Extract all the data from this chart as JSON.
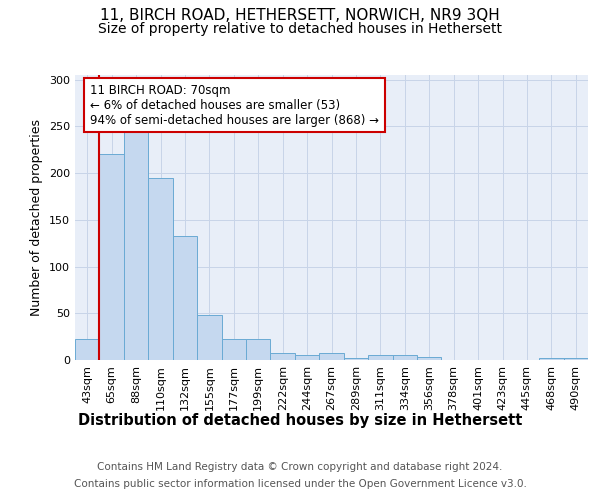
{
  "title1": "11, BIRCH ROAD, HETHERSETT, NORWICH, NR9 3QH",
  "title2": "Size of property relative to detached houses in Hethersett",
  "xlabel": "Distribution of detached houses by size in Hethersett",
  "ylabel": "Number of detached properties",
  "footnote1": "Contains HM Land Registry data © Crown copyright and database right 2024.",
  "footnote2": "Contains public sector information licensed under the Open Government Licence v3.0.",
  "bin_labels": [
    "43sqm",
    "65sqm",
    "88sqm",
    "110sqm",
    "132sqm",
    "155sqm",
    "177sqm",
    "199sqm",
    "222sqm",
    "244sqm",
    "267sqm",
    "289sqm",
    "311sqm",
    "334sqm",
    "356sqm",
    "378sqm",
    "401sqm",
    "423sqm",
    "445sqm",
    "468sqm",
    "490sqm"
  ],
  "bar_heights": [
    23,
    220,
    245,
    195,
    133,
    48,
    22,
    23,
    7,
    5,
    8,
    2,
    5,
    5,
    3,
    0,
    0,
    0,
    0,
    2,
    2
  ],
  "bar_color": "#c5d8ef",
  "bar_edge_color": "#6aaad4",
  "grid_color": "#c8d4e8",
  "annotation_line1": "11 BIRCH ROAD: 70sqm",
  "annotation_line2": "← 6% of detached houses are smaller (53)",
  "annotation_line3": "94% of semi-detached houses are larger (868) →",
  "red_line_bin_idx": 1,
  "red_line_color": "#cc0000",
  "annotation_box_facecolor": "#ffffff",
  "annotation_box_edgecolor": "#cc0000",
  "ylim": [
    0,
    305
  ],
  "yticks": [
    0,
    50,
    100,
    150,
    200,
    250,
    300
  ],
  "background_color": "#e8eef8",
  "title1_fontsize": 11,
  "title2_fontsize": 10,
  "xlabel_fontsize": 10.5,
  "ylabel_fontsize": 9,
  "tick_fontsize": 8,
  "annot_fontsize": 8.5,
  "footnote_fontsize": 7.5
}
